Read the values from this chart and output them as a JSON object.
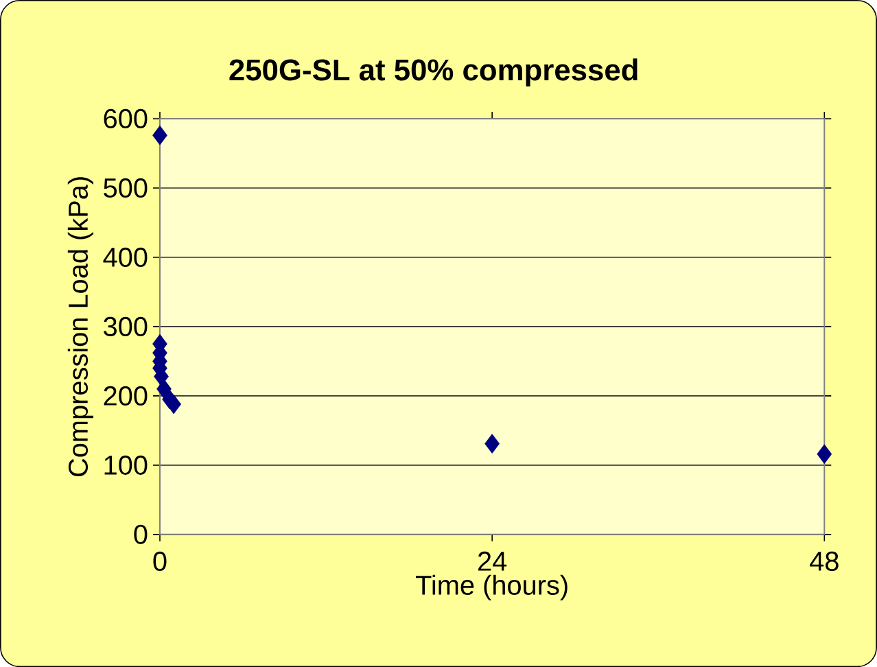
{
  "chart_data": {
    "type": "scatter",
    "title": "250G-SL at 50% compressed",
    "xlabel": "Time (hours)",
    "ylabel": "Compression Load (kPa)",
    "x": [
      0,
      0,
      0,
      0,
      0,
      0.1,
      0.3,
      0.7,
      1.0,
      24,
      48
    ],
    "values": [
      576,
      275,
      262,
      250,
      240,
      228,
      210,
      195,
      188,
      131,
      116
    ],
    "color": "#000080",
    "marker": "diamond",
    "grid": "y",
    "xlim": [
      0,
      48
    ],
    "xticks": [
      0,
      24,
      48
    ],
    "ylim": [
      0,
      600
    ],
    "yticks": [
      0,
      100,
      200,
      300,
      400,
      500,
      600
    ]
  }
}
